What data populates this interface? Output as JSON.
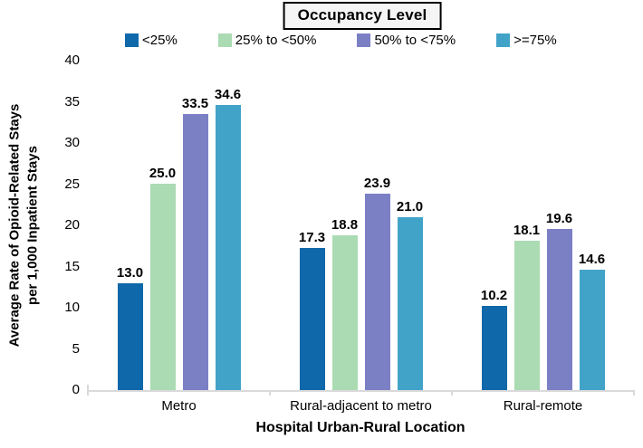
{
  "chart_data": {
    "type": "bar",
    "legend_title": "Occupancy Level",
    "categories": [
      "Metro",
      "Rural-adjacent to metro",
      "Rural-remote"
    ],
    "series": [
      {
        "name": "<25%",
        "color": "#0e68a9",
        "values": [
          13.0,
          17.3,
          10.2
        ]
      },
      {
        "name": "25% to <50%",
        "color": "#aadbb2",
        "values": [
          25.0,
          18.8,
          18.1
        ]
      },
      {
        "name": "50% to <75%",
        "color": "#7b80c5",
        "values": [
          33.5,
          23.9,
          19.6
        ]
      },
      {
        "name": ">=75%",
        "color": "#42a3c9",
        "values": [
          34.6,
          21.0,
          14.6
        ]
      }
    ],
    "xlabel": "Hospital Urban-Rural Location",
    "ylabel": "Average Rate of Opioid-Related Stays\nper 1,000 Inpatient Stays",
    "ylim": [
      0,
      40
    ],
    "yticks": [
      0,
      5,
      10,
      15,
      20,
      25,
      30,
      35,
      40
    ],
    "grid": false,
    "legend_position": "top",
    "data_label_decimals": 1,
    "axis_color": "#d9d9d9"
  }
}
